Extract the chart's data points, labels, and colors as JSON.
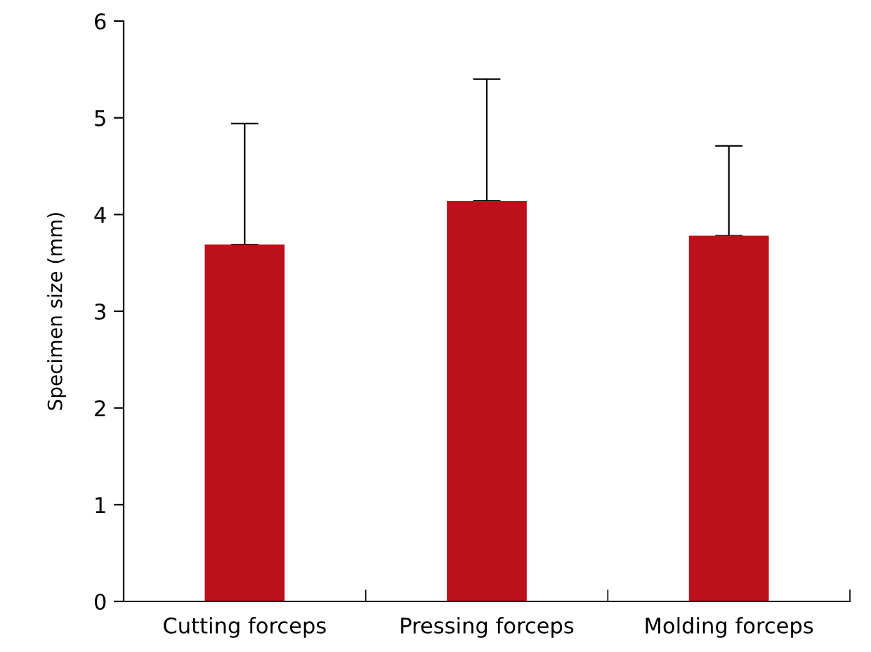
{
  "chart_data": {
    "type": "bar",
    "ylabel": "Specimen size (mm)",
    "categories": [
      "Cutting forceps",
      "Pressing forceps",
      "Molding forceps"
    ],
    "values": [
      3.69,
      4.14,
      3.78
    ],
    "errors": [
      [
        3.69,
        4.94
      ],
      [
        4.14,
        5.4
      ],
      [
        3.78,
        4.71
      ]
    ],
    "color": "#bb111a",
    "ylim": [
      0,
      6
    ],
    "yticks": [
      0,
      1,
      2,
      3,
      4,
      5,
      6
    ],
    "grid": false,
    "legend": false
  }
}
